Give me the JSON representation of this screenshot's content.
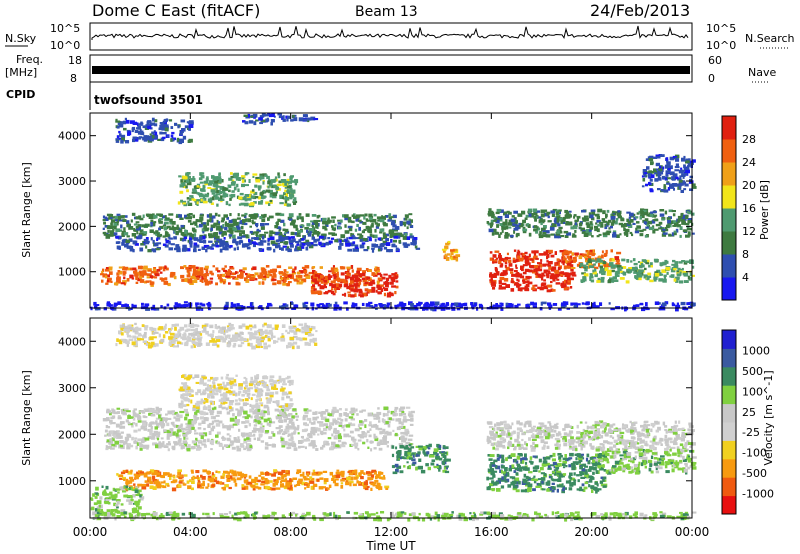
{
  "header": {
    "title": "Dome C East (fitACF)",
    "beam": "Beam 13",
    "date": "24/Feb/2013"
  },
  "top_panels": {
    "nsky_label": "N.Sky",
    "nsky_ticks": [
      "10^5",
      "10^0"
    ],
    "nsearch_label": "N.Search",
    "nsearch_ticks": [
      "10^5",
      "10^0"
    ],
    "freq_label": "Freq.",
    "freq_unit": "[MHz]",
    "freq_ticks": [
      "18",
      "8"
    ],
    "nave_label": "Nave",
    "nave_ticks": [
      "60",
      "0"
    ],
    "cpid_label": "CPID",
    "cpid_value": "twofsound 3501"
  },
  "colors": {
    "power": [
      "#1818f0",
      "#2f4fb0",
      "#3e7a40",
      "#4f9a70",
      "#f2e51a",
      "#f0a018",
      "#f06010",
      "#e02010"
    ],
    "velocity": [
      "#e81010",
      "#f05a10",
      "#f79a10",
      "#f0d020",
      "#d0d0d0",
      "#c8c8c8",
      "#80d040",
      "#3a8a60",
      "#3a5aa0",
      "#2020d0"
    ]
  },
  "chart_data": [
    {
      "type": "heatmap",
      "name": "power",
      "ylabel": "Slant Range [km]",
      "yticks": [
        "1000",
        "2000",
        "3000",
        "4000"
      ],
      "ylim": [
        200,
        4500
      ],
      "xticks": [
        "00:00",
        "04:00",
        "08:00",
        "12:00",
        "16:00",
        "20:00",
        "00:00"
      ],
      "colorbar_label": "Power [dB]",
      "colorbar_ticks": [
        "4",
        "8",
        "12",
        "16",
        "20",
        "24",
        "28"
      ],
      "colorbar_range": [
        0,
        32
      ],
      "blobs": [
        {
          "t": [
            0.5,
            12.8
          ],
          "r": [
            1800,
            2300
          ],
          "c": 2
        },
        {
          "t": [
            1.0,
            13.0
          ],
          "r": [
            1500,
            1800
          ],
          "c": 1
        },
        {
          "t": [
            0.4,
            11.5
          ],
          "r": [
            750,
            1150
          ],
          "c": 6
        },
        {
          "t": [
            8.8,
            12.2
          ],
          "r": [
            500,
            1000
          ],
          "c": 7
        },
        {
          "t": [
            3.5,
            8.2
          ],
          "r": [
            2500,
            3200
          ],
          "c": 3
        },
        {
          "t": [
            15.9,
            19.2
          ],
          "r": [
            600,
            1500
          ],
          "c": 7
        },
        {
          "t": [
            18.8,
            21.0
          ],
          "r": [
            1100,
            1500
          ],
          "c": 6
        },
        {
          "t": [
            14.0,
            14.6
          ],
          "r": [
            1300,
            1700
          ],
          "c": 5
        },
        {
          "t": [
            15.8,
            24.0
          ],
          "r": [
            1800,
            2400
          ],
          "c": 2
        },
        {
          "t": [
            19.5,
            24.0
          ],
          "r": [
            800,
            1300
          ],
          "c": 3
        },
        {
          "t": [
            22.0,
            24.0
          ],
          "r": [
            2800,
            3600
          ],
          "c": 1
        },
        {
          "t": [
            1.0,
            4.0
          ],
          "r": [
            3900,
            4400
          ],
          "c": 1
        },
        {
          "t": [
            6.0,
            9.0
          ],
          "r": [
            4300,
            4500
          ],
          "c": 1
        },
        {
          "t": [
            0.0,
            24.0
          ],
          "r": [
            200,
            350
          ],
          "c": 0
        }
      ]
    },
    {
      "type": "heatmap",
      "name": "velocity",
      "ylabel": "Slant Range [km]",
      "yticks": [
        "1000",
        "2000",
        "3000",
        "4000"
      ],
      "ylim": [
        200,
        4500
      ],
      "xlabel": "Time UT",
      "xticks": [
        "00:00",
        "04:00",
        "08:00",
        "12:00",
        "16:00",
        "20:00",
        "00:00"
      ],
      "colorbar_label": "Velocity [m s^-1]",
      "colorbar_ticks": [
        "-1000",
        "-500",
        "-100",
        "-25",
        "25",
        "100",
        "500",
        "1000"
      ],
      "blobs": [
        {
          "t": [
            0.5,
            12.8
          ],
          "r": [
            1700,
            2600
          ],
          "c": 5
        },
        {
          "t": [
            1.0,
            11.8
          ],
          "r": [
            850,
            1250
          ],
          "c": 2
        },
        {
          "t": [
            12.0,
            14.2
          ],
          "r": [
            1200,
            1800
          ],
          "c": 7
        },
        {
          "t": [
            15.8,
            20.5
          ],
          "r": [
            800,
            1600
          ],
          "c": 7
        },
        {
          "t": [
            15.8,
            24.0
          ],
          "r": [
            1700,
            2300
          ],
          "c": 5
        },
        {
          "t": [
            20.0,
            24.0
          ],
          "r": [
            1200,
            1700
          ],
          "c": 6
        },
        {
          "t": [
            3.5,
            8.0
          ],
          "r": [
            2600,
            3300
          ],
          "c": 4
        },
        {
          "t": [
            1.0,
            9.0
          ],
          "r": [
            3900,
            4400
          ],
          "c": 4
        },
        {
          "t": [
            0.0,
            2.0
          ],
          "r": [
            300,
            900
          ],
          "c": 6
        },
        {
          "t": [
            0.0,
            24.0
          ],
          "r": [
            200,
            350
          ],
          "c": 6
        }
      ]
    }
  ]
}
